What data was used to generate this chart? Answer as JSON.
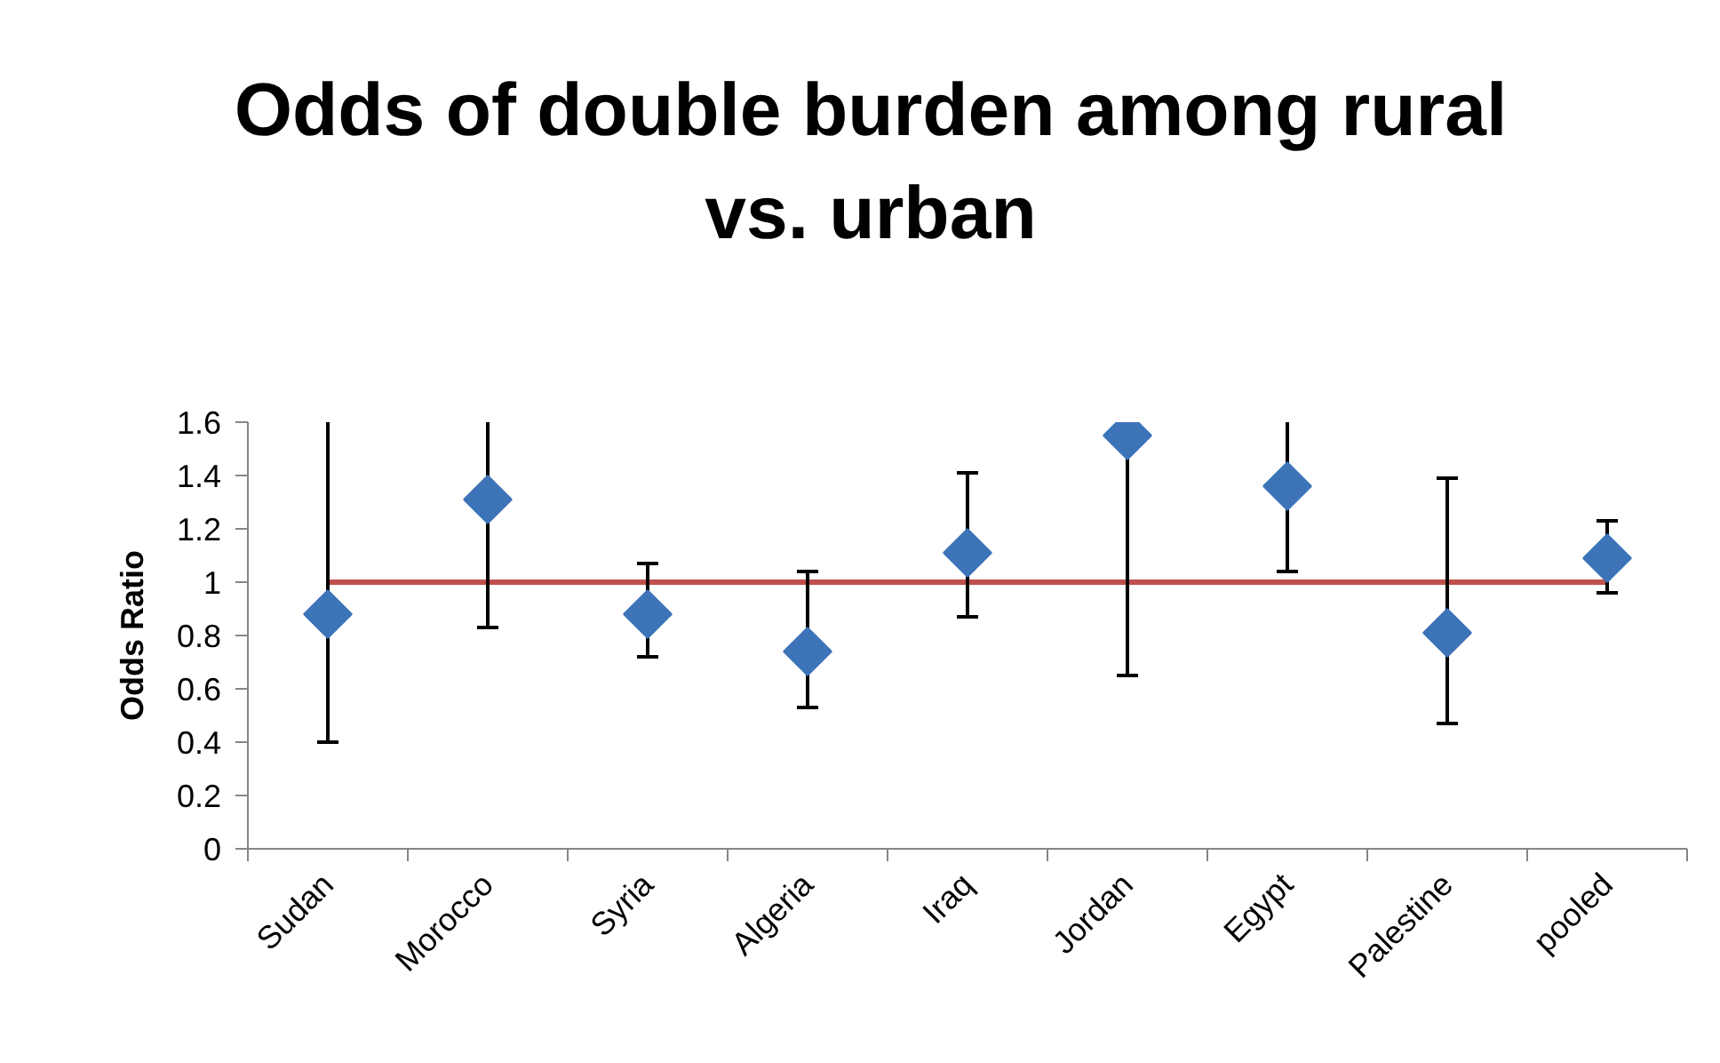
{
  "chart_data": {
    "type": "scatter",
    "title": "Odds of double burden among rural vs. urban",
    "ylabel": "Odds Ratio",
    "categories": [
      "Sudan",
      "Morocco",
      "Syria",
      "Algeria",
      "Iraq",
      "Jordan",
      "Egypt",
      "Palestine",
      "pooled"
    ],
    "ylim": [
      0,
      1.6
    ],
    "yticks": [
      0,
      0.2,
      0.4,
      0.6,
      0.8,
      1,
      1.2,
      1.4,
      1.6
    ],
    "series": [
      {
        "type": "line",
        "color": "#c0504d",
        "marker": "none",
        "line_style": "solid",
        "values": [
          1,
          1,
          1,
          1,
          1,
          1,
          1,
          1,
          1
        ]
      },
      {
        "type": "scatter",
        "color": "#3d74b8",
        "marker": "diamond",
        "values": [
          0.88,
          1.31,
          0.88,
          0.74,
          1.11,
          1.55,
          1.36,
          0.81,
          1.09
        ],
        "errors": [
          [
            0.4,
            1.6
          ],
          [
            0.83,
            1.6
          ],
          [
            0.72,
            1.07
          ],
          [
            0.53,
            1.04
          ],
          [
            0.87,
            1.41
          ],
          [
            0.65,
            1.6
          ],
          [
            1.04,
            1.6
          ],
          [
            0.47,
            1.39
          ],
          [
            0.96,
            1.23
          ]
        ]
      }
    ]
  }
}
